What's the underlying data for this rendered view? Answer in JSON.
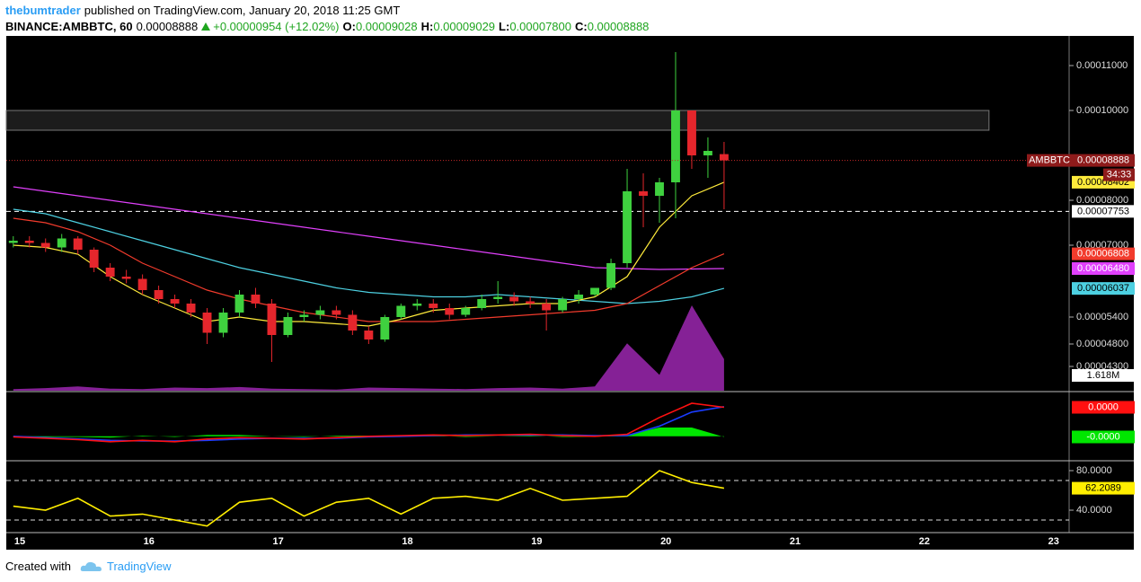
{
  "header": {
    "author": "thebumtrader",
    "published": "published on TradingView.com, January 20, 2018 11:25 GMT",
    "symbol": "BINANCE:AMBBTC, 60",
    "price": "0.00008888",
    "change": "+0.00000954 (+12.02%)",
    "ohlc": [
      {
        "label": "O:",
        "value": "0.00009028"
      },
      {
        "label": "H:",
        "value": "0.00009029"
      },
      {
        "label": "L:",
        "value": "0.00007800"
      },
      {
        "label": "C:",
        "value": "0.00008888"
      }
    ]
  },
  "footer": {
    "created": "Created with",
    "brand": "TradingView"
  },
  "chart_data": [
    {
      "type": "candlestick",
      "xlim": [
        14.896,
        23.12
      ],
      "ylim": [
        3.76e-05,
        0.0001152
      ],
      "grid": false,
      "yticks": [
        {
          "value": 0.00011,
          "label": "0.00011000"
        },
        {
          "value": 0.0001,
          "label": "0.00010000"
        },
        {
          "value": 8e-05,
          "label": "0.00008000"
        },
        {
          "value": 7e-05,
          "label": "0.00007000"
        },
        {
          "value": 5.4e-05,
          "label": "0.00005400"
        },
        {
          "value": 4.8e-05,
          "label": "0.00004800"
        },
        {
          "value": 4.3e-05,
          "label": "0.00004300"
        }
      ],
      "up_color": "#3fd13f",
      "down_color": "#e5262c",
      "x": [
        14.95,
        15.075,
        15.2,
        15.325,
        15.45,
        15.575,
        15.7,
        15.825,
        15.95,
        16.075,
        16.2,
        16.325,
        16.45,
        16.575,
        16.7,
        16.825,
        16.95,
        17.075,
        17.2,
        17.325,
        17.45,
        17.575,
        17.7,
        17.825,
        17.95,
        18.075,
        18.2,
        18.325,
        18.45,
        18.575,
        18.7,
        18.825,
        18.95,
        19.075,
        19.2,
        19.325,
        19.45,
        19.575,
        19.7,
        19.825,
        19.95,
        20.075,
        20.2,
        20.325,
        20.45
      ],
      "open": [
        7.05e-05,
        7.1e-05,
        7.05e-05,
        6.95e-05,
        7.15e-05,
        6.9e-05,
        6.5e-05,
        6.3e-05,
        6.25e-05,
        6e-05,
        5.8e-05,
        5.7e-05,
        5.5e-05,
        5.05e-05,
        5.5e-05,
        5.9e-05,
        5.7e-05,
        5e-05,
        5.4e-05,
        5.45e-05,
        5.55e-05,
        5.45e-05,
        5.1e-05,
        4.9e-05,
        5.4e-05,
        5.65e-05,
        5.7e-05,
        5.6e-05,
        5.45e-05,
        5.6e-05,
        5.8e-05,
        5.85e-05,
        5.75e-05,
        5.7e-05,
        5.55e-05,
        5.8e-05,
        5.9e-05,
        6.05e-05,
        6.6e-05,
        8.2e-05,
        8.1e-05,
        8.4e-05,
        0.0001,
        9e-05,
        9.028e-05
      ],
      "high": [
        7.2e-05,
        7.2e-05,
        7.15e-05,
        7.25e-05,
        7.2e-05,
        6.95e-05,
        6.6e-05,
        6.45e-05,
        6.35e-05,
        6.1e-05,
        5.9e-05,
        5.8e-05,
        5.6e-05,
        5.6e-05,
        6e-05,
        6.05e-05,
        5.8e-05,
        5.5e-05,
        5.55e-05,
        5.65e-05,
        5.65e-05,
        5.55e-05,
        5.2e-05,
        5.45e-05,
        5.7e-05,
        5.8e-05,
        5.8e-05,
        5.7e-05,
        5.65e-05,
        5.9e-05,
        6.2e-05,
        5.95e-05,
        5.85e-05,
        5.8e-05,
        5.85e-05,
        6e-05,
        6.05e-05,
        6.7e-05,
        8.7e-05,
        8.6e-05,
        8.5e-05,
        0.000113,
        0.0001,
        9.4e-05,
        9.3e-05
      ],
      "low": [
        6.95e-05,
        6.95e-05,
        6.85e-05,
        6.85e-05,
        6.8e-05,
        6.4e-05,
        6.2e-05,
        6.15e-05,
        5.9e-05,
        5.7e-05,
        5.6e-05,
        5.4e-05,
        4.8e-05,
        4.95e-05,
        5.4e-05,
        5.6e-05,
        4.4e-05,
        4.95e-05,
        5.3e-05,
        5.35e-05,
        5.35e-05,
        5e-05,
        4.8e-05,
        4.85e-05,
        5.35e-05,
        5.55e-05,
        5.5e-05,
        5.35e-05,
        5.4e-05,
        5.55e-05,
        5.7e-05,
        5.65e-05,
        5.6e-05,
        5.1e-05,
        5.5e-05,
        5.7e-05,
        5.85e-05,
        6e-05,
        6.5e-05,
        7.4e-05,
        7.5e-05,
        7.6e-05,
        8.7e-05,
        8.5e-05,
        7.8e-05
      ],
      "close": [
        7.1e-05,
        7.05e-05,
        6.95e-05,
        7.15e-05,
        6.9e-05,
        6.5e-05,
        6.3e-05,
        6.25e-05,
        6e-05,
        5.8e-05,
        5.7e-05,
        5.5e-05,
        5.05e-05,
        5.5e-05,
        5.9e-05,
        5.7e-05,
        5e-05,
        5.4e-05,
        5.45e-05,
        5.55e-05,
        5.45e-05,
        5.1e-05,
        4.9e-05,
        5.4e-05,
        5.65e-05,
        5.7e-05,
        5.6e-05,
        5.45e-05,
        5.6e-05,
        5.8e-05,
        5.85e-05,
        5.75e-05,
        5.7e-05,
        5.55e-05,
        5.8e-05,
        5.9e-05,
        6.05e-05,
        6.6e-05,
        8.2e-05,
        8.1e-05,
        8.4e-05,
        0.0001,
        9e-05,
        9.1e-05,
        8.888e-05
      ],
      "symbol": "AMBBTC",
      "last_label": "0.00008888",
      "countdown": "34:33",
      "zone": {
        "x": [
          14.896,
          22.5
        ],
        "y": [
          9.56e-05,
          0.0001
        ]
      },
      "levels": [
        {
          "value": 7.753e-05,
          "label": "0.00007753",
          "color": "#ffffff"
        }
      ],
      "lines": {
        "x": [
          14.95,
          15.2,
          15.45,
          15.7,
          15.95,
          16.2,
          16.45,
          16.7,
          16.95,
          17.2,
          17.45,
          17.7,
          17.95,
          18.2,
          18.45,
          18.7,
          18.95,
          19.2,
          19.45,
          19.7,
          19.95,
          20.2,
          20.45
        ],
        "series": [
          {
            "color": "#e040fb",
            "values": [
              8.3e-05,
              8.2e-05,
              8.1e-05,
              8e-05,
              7.9e-05,
              7.8e-05,
              7.7e-05,
              7.6e-05,
              7.5e-05,
              7.4e-05,
              7.3e-05,
              7.2e-05,
              7.1e-05,
              7e-05,
              6.9e-05,
              6.8e-05,
              6.7e-05,
              6.6e-05,
              6.5e-05,
              6.48e-05,
              6.46e-05,
              6.47e-05,
              6.48e-05
            ],
            "last_label": "0.00006480"
          },
          {
            "color": "#4dd0e1",
            "values": [
              7.8e-05,
              7.7e-05,
              7.5e-05,
              7.3e-05,
              7.1e-05,
              6.9e-05,
              6.7e-05,
              6.5e-05,
              6.35e-05,
              6.2e-05,
              6.05e-05,
              5.95e-05,
              5.9e-05,
              5.85e-05,
              5.85e-05,
              5.9e-05,
              5.85e-05,
              5.8e-05,
              5.75e-05,
              5.7e-05,
              5.75e-05,
              5.85e-05,
              6.037e-05
            ],
            "last_label": "0.00006037"
          },
          {
            "color": "#f23b2c",
            "values": [
              7.6e-05,
              7.5e-05,
              7.3e-05,
              7e-05,
              6.6e-05,
              6.3e-05,
              6e-05,
              5.8e-05,
              5.65e-05,
              5.5e-05,
              5.4e-05,
              5.3e-05,
              5.3e-05,
              5.3e-05,
              5.35e-05,
              5.4e-05,
              5.45e-05,
              5.5e-05,
              5.55e-05,
              5.7e-05,
              6.1e-05,
              6.5e-05,
              6.808e-05
            ],
            "last_label": "0.00006808"
          },
          {
            "color": "#ffeb3b",
            "values": [
              7e-05,
              6.95e-05,
              6.8e-05,
              6.3e-05,
              5.9e-05,
              5.6e-05,
              5.3e-05,
              5.4e-05,
              5.3e-05,
              5.3e-05,
              5.25e-05,
              5.2e-05,
              5.35e-05,
              5.55e-05,
              5.6e-05,
              5.65e-05,
              5.7e-05,
              5.7e-05,
              5.85e-05,
              6.3e-05,
              7.4e-05,
              8.1e-05,
              8.402e-05
            ],
            "last_label": "0.00008402"
          }
        ]
      },
      "volume": {
        "color": "#9c27b0",
        "label": "1.618M",
        "values": [
          30000,
          50000,
          80000,
          40000,
          30000,
          60000,
          50000,
          70000,
          40000,
          30000,
          20000,
          60000,
          50000,
          40000,
          30000,
          50000,
          60000,
          40000,
          80000,
          900000,
          300000,
          1618000,
          600000
        ]
      }
    },
    {
      "type": "line",
      "xlim": [
        14.896,
        23.12
      ],
      "ylim": [
        -3.5e-06,
        6.5e-06
      ],
      "x": [
        14.95,
        15.2,
        15.45,
        15.7,
        15.95,
        16.2,
        16.45,
        16.7,
        16.95,
        17.2,
        17.45,
        17.7,
        17.95,
        18.2,
        18.45,
        18.7,
        18.95,
        19.2,
        19.45,
        19.7,
        19.95,
        20.2,
        20.45
      ],
      "series": [
        {
          "style": "area",
          "color": "#00e600",
          "values": [
            -1e-07,
            -1e-07,
            -1e-07,
            -2e-07,
            1e-07,
            -1e-07,
            2e-07,
            2e-07,
            0,
            -1e-07,
            1e-07,
            1e-07,
            1e-07,
            1e-07,
            -1e-07,
            0,
            1e-07,
            -1e-07,
            -1e-07,
            2e-07,
            1.3e-06,
            1.3e-06,
            -1e-07
          ],
          "last_label": "-0.0000"
        },
        {
          "color": "#1a3cff",
          "values": [
            0,
            -2e-07,
            -4e-07,
            -6e-07,
            -7e-07,
            -7e-07,
            -6e-07,
            -4e-07,
            -3e-07,
            -3e-07,
            -3e-07,
            -1e-07,
            0,
            1e-07,
            2e-07,
            2e-07,
            2e-07,
            2e-07,
            1e-07,
            1e-07,
            1.5e-06,
            3.6e-06,
            4.4e-06
          ]
        },
        {
          "color": "#ff1010",
          "values": [
            -1e-07,
            -3e-07,
            -5e-07,
            -8e-07,
            -6e-07,
            -8e-07,
            -4e-07,
            -2e-07,
            -3e-07,
            -4e-07,
            -2e-07,
            0,
            1e-07,
            2e-07,
            1e-07,
            2e-07,
            3e-07,
            1e-07,
            0,
            3e-07,
            2.8e-06,
            4.9e-06,
            4.3e-06
          ],
          "last_label": "0.0000"
        }
      ]
    },
    {
      "type": "line",
      "xlim": [
        14.896,
        23.12
      ],
      "ylim": [
        17.3,
        89.1
      ],
      "yticks": [
        {
          "value": 80,
          "label": "80.0000"
        },
        {
          "value": 40,
          "label": "40.0000"
        }
      ],
      "bands": [
        30,
        70
      ],
      "xticks": [
        15,
        16,
        17,
        18,
        19,
        20,
        21,
        22,
        23
      ],
      "x": [
        14.95,
        15.2,
        15.45,
        15.7,
        15.95,
        16.2,
        16.45,
        16.7,
        16.95,
        17.2,
        17.45,
        17.7,
        17.95,
        18.2,
        18.45,
        18.7,
        18.95,
        19.2,
        19.45,
        19.7,
        19.95,
        20.2,
        20.45
      ],
      "series": [
        {
          "color": "#ffee00",
          "values": [
            44,
            40,
            52,
            34,
            36,
            30,
            24,
            48,
            52,
            34,
            48,
            52,
            36,
            52,
            54,
            50,
            62,
            50,
            52,
            54,
            80,
            68,
            62.2089
          ],
          "last_label": "62.2089"
        }
      ]
    }
  ]
}
